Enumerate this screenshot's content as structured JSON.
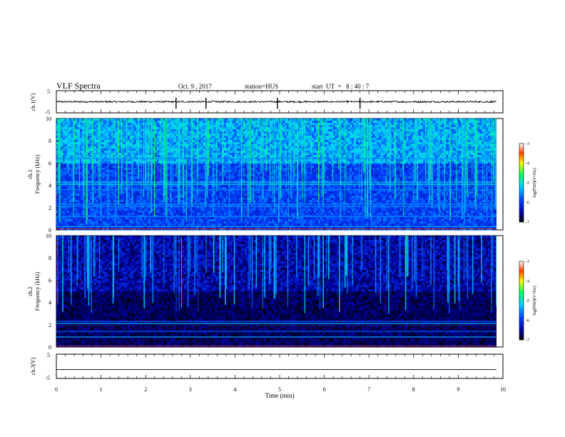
{
  "header": {
    "title": "VLF Spectra",
    "date": "Oct. 9 , 2017",
    "station": "station=HUS",
    "start": "start  UT  =   8 : 40 : 7"
  },
  "chart_data": [
    {
      "type": "line",
      "ylabel": "ch.1(V)",
      "ylim": [
        -5,
        5
      ],
      "yticks": [
        "5",
        "-5"
      ],
      "xlim": [
        0,
        10
      ],
      "baseline_value": 0,
      "noise_amplitude": 0.4,
      "spike_times": [
        2.68,
        3.35,
        4.95,
        6.8
      ],
      "record_end": 9.85
    },
    {
      "type": "heatmap",
      "ylabel_top": "ch.1",
      "ylabel": "Frequency (kHz)",
      "xlim": [
        0,
        10
      ],
      "ylim": [
        0,
        10
      ],
      "yticks": [
        "0",
        "2",
        "4",
        "6",
        "8",
        "10"
      ],
      "colorbar": {
        "label": "log(PSD)(V²/Hz)",
        "ticks": [
          "-3",
          "-4",
          "-5",
          "-6",
          "-7"
        ],
        "range": [
          -7,
          -3
        ]
      },
      "bright_bands_khz": [
        0.3,
        1.2,
        2.1,
        2.3,
        3.6,
        4.1,
        4.3,
        6.4
      ],
      "record_end": 9.85
    },
    {
      "type": "heatmap",
      "ylabel_top": "ch.2",
      "ylabel": "Frequency (kHz)",
      "xlim": [
        0,
        10
      ],
      "ylim": [
        0,
        10
      ],
      "yticks": [
        "0",
        "2",
        "4",
        "6",
        "8",
        "10"
      ],
      "colorbar": {
        "label": "log(PSD)(V²/Hz)",
        "ticks": [
          "-3",
          "-4",
          "-5",
          "-6",
          "-7"
        ],
        "range": [
          -7,
          -3
        ]
      },
      "bright_bands_khz": [
        0.1,
        0.9,
        1.4,
        2.1,
        2.3
      ],
      "record_end": 9.85
    },
    {
      "type": "line",
      "ylabel": "ch.3(V)",
      "ylim": [
        -5,
        5
      ],
      "yticks": [
        "5",
        "-5"
      ],
      "xlim": [
        0,
        10
      ],
      "baseline_value": -1.3,
      "record_end": 9.85,
      "xlabel": "Time (min)",
      "xticks": [
        "0",
        "1",
        "2",
        "3",
        "4",
        "5",
        "6",
        "7",
        "8",
        "9",
        "10"
      ]
    }
  ]
}
